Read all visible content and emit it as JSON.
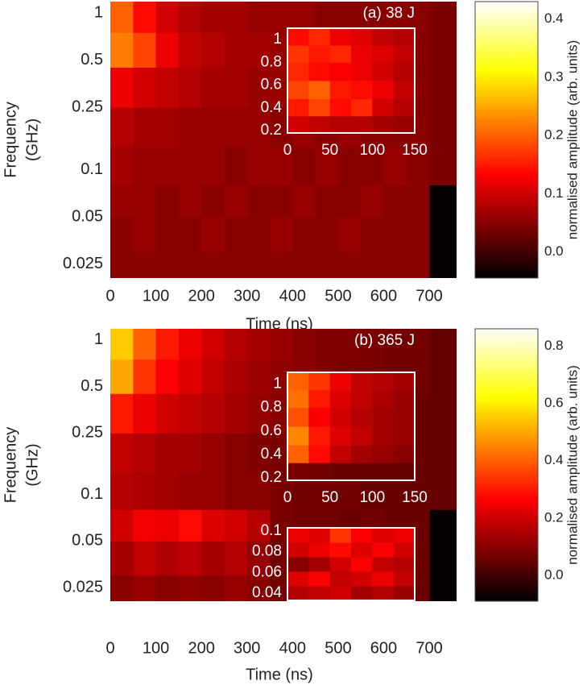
{
  "chart_data": [
    {
      "type": "heatmap",
      "label": "(a) 38 J",
      "xlabel": "Time (ns)",
      "ylabel": [
        "Frequency",
        "(GHz)"
      ],
      "xlim": [
        0,
        760
      ],
      "xticks": [
        0,
        100,
        200,
        300,
        400,
        500,
        600,
        700
      ],
      "ylim": [
        0.0204,
        1.18
      ],
      "yticks": [
        0.025,
        0.05,
        0.1,
        0.25,
        0.5,
        1
      ],
      "log_y": true,
      "colormap": "hot",
      "x_bins": [
        0,
        50,
        100,
        150,
        200,
        250,
        300,
        350,
        400,
        450,
        500,
        550,
        600,
        650,
        700,
        760
      ],
      "y_bins": [
        0.0204,
        0.03,
        0.05,
        0.08,
        0.14,
        0.25,
        0.45,
        0.75,
        1.18
      ],
      "values": [
        [
          0.05,
          0.05,
          0.05,
          0.05,
          0.05,
          0.05,
          0.05,
          0.05,
          0.05,
          0.05,
          0.05,
          0.05,
          0.05,
          0.05,
          -0.04
        ],
        [
          0.05,
          0.06,
          0.05,
          0.05,
          0.06,
          0.05,
          0.05,
          0.06,
          0.05,
          0.05,
          0.06,
          0.05,
          0.05,
          0.05,
          -0.04
        ],
        [
          0.06,
          0.06,
          0.05,
          0.06,
          0.05,
          0.06,
          0.05,
          0.05,
          0.06,
          0.05,
          0.05,
          0.06,
          0.05,
          0.05,
          -0.04
        ],
        [
          0.07,
          0.06,
          0.06,
          0.06,
          0.06,
          0.05,
          0.06,
          0.06,
          0.05,
          0.06,
          0.05,
          0.05,
          0.06,
          0.05,
          0.04
        ],
        [
          0.08,
          0.07,
          0.07,
          0.06,
          0.06,
          0.06,
          0.06,
          0.05,
          0.06,
          0.05,
          0.06,
          0.05,
          0.05,
          0.05,
          0.04
        ],
        [
          0.12,
          0.1,
          0.09,
          0.08,
          0.07,
          0.07,
          0.06,
          0.06,
          0.06,
          0.06,
          0.05,
          0.05,
          0.05,
          0.05,
          0.04
        ],
        [
          0.22,
          0.18,
          0.12,
          0.09,
          0.08,
          0.07,
          0.07,
          0.06,
          0.06,
          0.06,
          0.05,
          0.05,
          0.05,
          0.05,
          0.04
        ],
        [
          0.2,
          0.14,
          0.1,
          0.08,
          0.07,
          0.07,
          0.06,
          0.06,
          0.06,
          0.05,
          0.05,
          0.05,
          0.05,
          0.05,
          0.04
        ]
      ],
      "colorbar": {
        "label": "normalised amplitude (arb. units)",
        "lim": [
          -0.045,
          0.43
        ],
        "ticks": [
          {
            "value": 0,
            "label": "0.0"
          },
          0.1,
          0.2,
          0.3,
          0.4
        ]
      },
      "insets": [
        {
          "xlim": [
            0,
            150
          ],
          "xticks": [
            0,
            50,
            100,
            150
          ],
          "ylim": [
            0.18,
            1.1
          ],
          "yticks": [
            0.2,
            0.4,
            0.6,
            0.8,
            1
          ],
          "x_bins": [
            0,
            25,
            50,
            75,
            100,
            125,
            150
          ],
          "y_bins": [
            0.18,
            0.33,
            0.48,
            0.64,
            0.8,
            0.95,
            1.1
          ],
          "values": [
            [
              0.1,
              0.09,
              0.08,
              0.08,
              0.07,
              0.06
            ],
            [
              0.15,
              0.18,
              0.14,
              0.16,
              0.1,
              0.08
            ],
            [
              0.18,
              0.2,
              0.15,
              0.14,
              0.12,
              0.09
            ],
            [
              0.16,
              0.14,
              0.13,
              0.12,
              0.1,
              0.08
            ],
            [
              0.17,
              0.15,
              0.16,
              0.12,
              0.11,
              0.09
            ],
            [
              0.14,
              0.16,
              0.12,
              0.11,
              0.09,
              0.08
            ]
          ]
        }
      ]
    },
    {
      "type": "heatmap",
      "label": "(b) 365 J",
      "xlabel": "Time (ns)",
      "ylabel": [
        "Frequency",
        "(GHz)"
      ],
      "xlim": [
        0,
        760
      ],
      "xticks": [
        0,
        100,
        200,
        300,
        400,
        500,
        600,
        700
      ],
      "ylim": [
        0.0204,
        1.18
      ],
      "yticks": [
        0.025,
        0.05,
        0.1,
        0.25,
        0.5,
        1
      ],
      "log_y": true,
      "colormap": "hot",
      "x_bins": [
        0,
        50,
        100,
        150,
        200,
        250,
        300,
        350,
        400,
        450,
        500,
        550,
        600,
        650,
        700,
        760
      ],
      "y_bins": [
        0.0204,
        0.03,
        0.05,
        0.08,
        0.14,
        0.25,
        0.45,
        0.75,
        1.18
      ],
      "values": [
        [
          0.1,
          0.12,
          0.1,
          0.11,
          0.1,
          0.12,
          0.1,
          0.07,
          0.06,
          0.06,
          0.06,
          0.06,
          0.06,
          0.06,
          -0.08
        ],
        [
          0.14,
          0.18,
          0.15,
          0.17,
          0.14,
          0.16,
          0.12,
          0.07,
          0.06,
          0.06,
          0.06,
          0.06,
          0.06,
          0.06,
          -0.08
        ],
        [
          0.2,
          0.25,
          0.24,
          0.28,
          0.22,
          0.2,
          0.16,
          0.08,
          0.07,
          0.07,
          0.06,
          0.07,
          0.06,
          0.06,
          -0.08
        ],
        [
          0.16,
          0.15,
          0.14,
          0.12,
          0.12,
          0.1,
          0.1,
          0.08,
          0.07,
          0.07,
          0.07,
          0.06,
          0.06,
          0.06,
          0.05
        ],
        [
          0.18,
          0.16,
          0.14,
          0.14,
          0.12,
          0.1,
          0.09,
          0.08,
          0.08,
          0.07,
          0.07,
          0.06,
          0.06,
          0.06,
          0.05
        ],
        [
          0.3,
          0.24,
          0.2,
          0.18,
          0.16,
          0.14,
          0.12,
          0.1,
          0.09,
          0.08,
          0.08,
          0.07,
          0.07,
          0.06,
          0.05
        ],
        [
          0.5,
          0.34,
          0.26,
          0.22,
          0.18,
          0.15,
          0.13,
          0.11,
          0.1,
          0.09,
          0.08,
          0.08,
          0.07,
          0.07,
          0.05
        ],
        [
          0.55,
          0.4,
          0.3,
          0.24,
          0.2,
          0.16,
          0.14,
          0.12,
          0.1,
          0.09,
          0.09,
          0.08,
          0.07,
          0.07,
          0.05
        ]
      ],
      "colorbar": {
        "label": "normalised amplitude (arb. units)",
        "lim": [
          -0.09,
          0.86
        ],
        "ticks": [
          {
            "value": 0,
            "label": "0.0"
          },
          0.2,
          0.4,
          0.6,
          0.8
        ]
      },
      "insets": [
        {
          "xlim": [
            0,
            150
          ],
          "xticks": [
            0,
            50,
            100,
            150
          ],
          "ylim": [
            0.18,
            1.1
          ],
          "yticks": [
            0.2,
            0.4,
            0.6,
            0.8,
            1
          ],
          "x_bins": [
            0,
            25,
            50,
            75,
            100,
            125,
            150
          ],
          "y_bins": [
            0.18,
            0.33,
            0.48,
            0.64,
            0.8,
            0.95,
            1.1
          ],
          "values": [
            [
              0.08,
              0.07,
              0.06,
              0.06,
              0.06,
              0.05
            ],
            [
              0.4,
              0.28,
              0.18,
              0.14,
              0.12,
              0.1
            ],
            [
              0.45,
              0.3,
              0.22,
              0.18,
              0.14,
              0.12
            ],
            [
              0.38,
              0.26,
              0.2,
              0.16,
              0.14,
              0.12
            ],
            [
              0.42,
              0.3,
              0.22,
              0.18,
              0.15,
              0.12
            ],
            [
              0.4,
              0.34,
              0.24,
              0.18,
              0.16,
              0.14
            ]
          ]
        },
        {
          "xlim": [
            0,
            300
          ],
          "ylim": [
            0.033,
            0.103
          ],
          "yticks": [
            0.04,
            0.06,
            0.08,
            0.1
          ],
          "x_bins": [
            0,
            50,
            100,
            150,
            200,
            250,
            300
          ],
          "y_bins": [
            0.033,
            0.047,
            0.061,
            0.075,
            0.089,
            0.103
          ],
          "values": [
            [
              0.16,
              0.18,
              0.2,
              0.14,
              0.16,
              0.12
            ],
            [
              0.22,
              0.26,
              0.18,
              0.2,
              0.24,
              0.18
            ],
            [
              0.1,
              0.14,
              0.2,
              0.26,
              0.18,
              0.16
            ],
            [
              0.2,
              0.24,
              0.28,
              0.22,
              0.26,
              0.2
            ],
            [
              0.24,
              0.22,
              0.34,
              0.26,
              0.22,
              0.24
            ]
          ]
        }
      ]
    }
  ]
}
